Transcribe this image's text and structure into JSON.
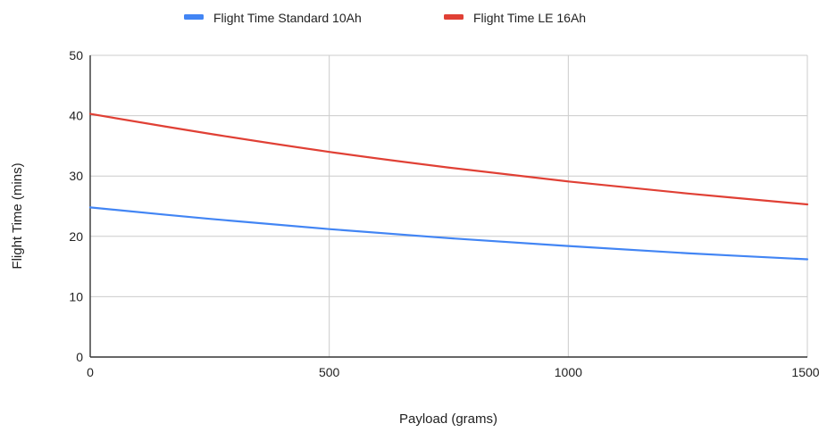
{
  "chart_data": {
    "type": "line",
    "title": "",
    "xlabel": "Payload (grams)",
    "ylabel": "Flight Time (mins)",
    "xlim": [
      0,
      1500
    ],
    "ylim": [
      0,
      50
    ],
    "x_ticks": [
      "0",
      "500",
      "1000",
      "1500"
    ],
    "y_ticks": [
      "0",
      "10",
      "20",
      "30",
      "40",
      "50"
    ],
    "x_tick_values": [
      0,
      500,
      1000,
      1500
    ],
    "y_tick_values": [
      0,
      10,
      20,
      30,
      40,
      50
    ],
    "grid": true,
    "legend_position": "top",
    "series": [
      {
        "name": "Flight Time Standard 10Ah",
        "color": "#4285f4",
        "x": [
          0,
          250,
          500,
          750,
          1000,
          1250,
          1500
        ],
        "values": [
          24.8,
          22.9,
          21.2,
          19.7,
          18.4,
          17.2,
          16.2
        ]
      },
      {
        "name": "Flight Time LE 16Ah",
        "color": "#e04035",
        "x": [
          0,
          250,
          500,
          750,
          1000,
          1250,
          1500
        ],
        "values": [
          40.3,
          37.0,
          34.0,
          31.4,
          29.1,
          27.1,
          25.3
        ]
      }
    ]
  }
}
